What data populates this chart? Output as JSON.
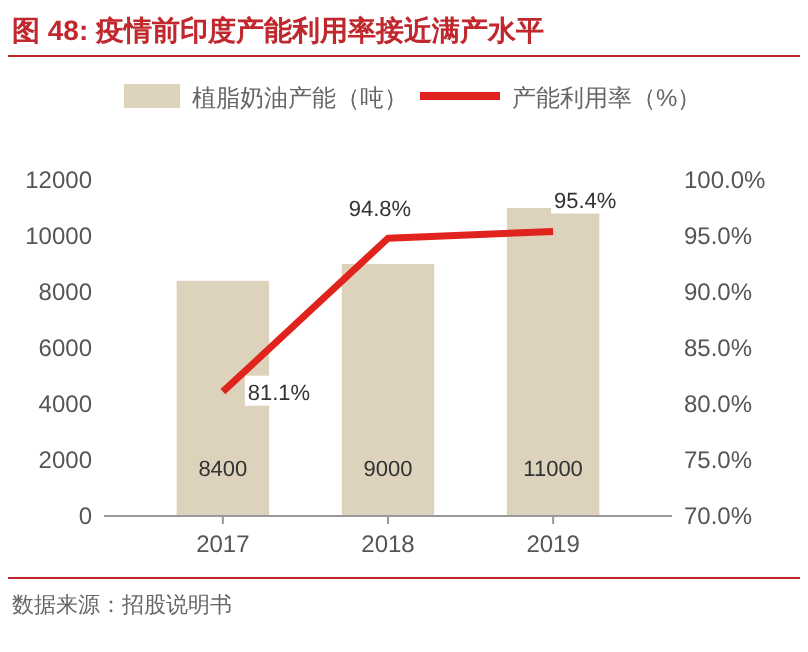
{
  "chart_data": {
    "type": "bar",
    "title": "图 48:  疫情前印度产能利用率接近满产水平",
    "categories": [
      "2017",
      "2018",
      "2019"
    ],
    "series": [
      {
        "name": "植脂奶油产能（吨）",
        "color": "#ddd3bd",
        "values": [
          8400,
          9000,
          11000
        ],
        "value_labels": [
          "8400",
          "9000",
          "11000"
        ]
      },
      {
        "name": "产能利用率（%）",
        "type": "line",
        "axis": "y2",
        "color": "#e0231c",
        "values": [
          81.1,
          94.8,
          95.4
        ],
        "value_labels": [
          "81.1%",
          "94.8%",
          "95.4%"
        ]
      }
    ],
    "ylim": [
      0,
      12000
    ],
    "yticks": [
      0,
      2000,
      4000,
      6000,
      8000,
      10000,
      12000
    ],
    "y2lim": [
      70,
      100
    ],
    "y2ticks": [
      {
        "value": 70,
        "label": "70.0%"
      },
      {
        "value": 75,
        "label": "75.0%"
      },
      {
        "value": 80,
        "label": "80.0%"
      },
      {
        "value": 85,
        "label": "85.0%"
      },
      {
        "value": 90,
        "label": "90.0%"
      },
      {
        "value": 95,
        "label": "95.0%"
      },
      {
        "value": 100,
        "label": "100.0%"
      }
    ],
    "legend": "top",
    "grid": false,
    "annotations": [
      "数据来源：招股说明书"
    ]
  }
}
